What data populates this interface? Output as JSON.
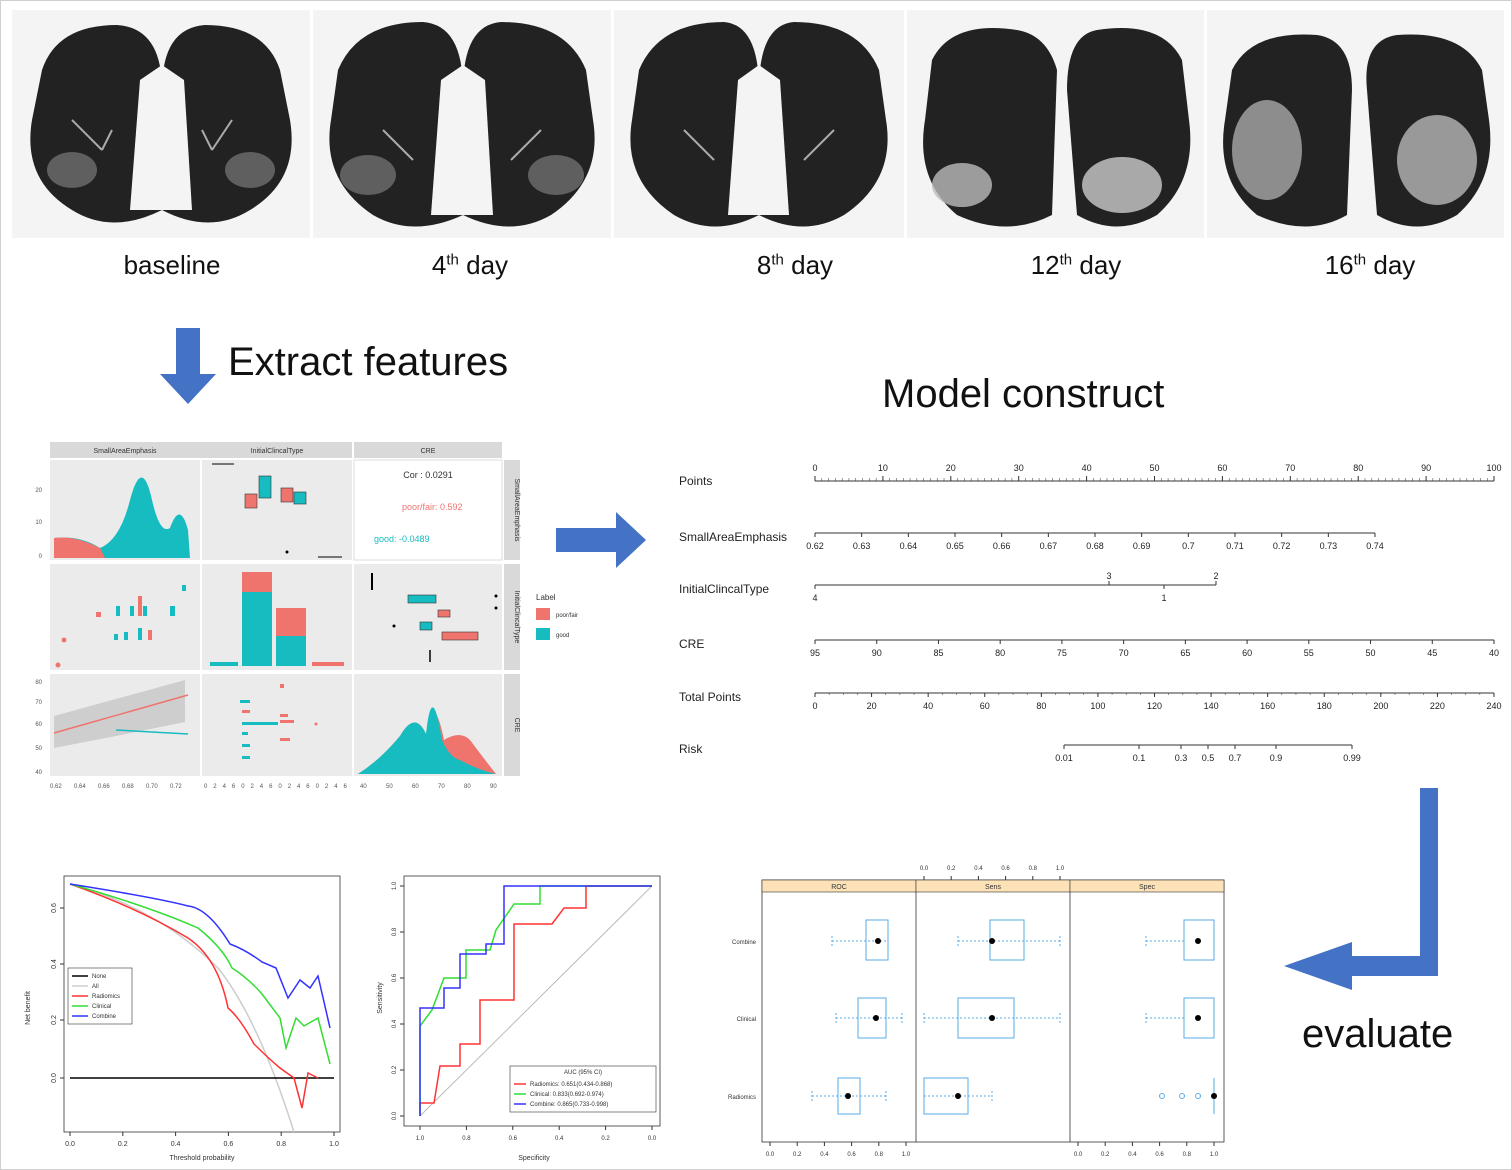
{
  "ct_labels": {
    "baseline": "baseline",
    "day4_num": "4",
    "day4_sup": "th",
    "day4_unit": " day",
    "day8_num": "8",
    "day8_sup": "th",
    "day8_unit": " day",
    "day12_num": "12",
    "day12_sup": "th",
    "day12_unit": " day",
    "day16_num": "16",
    "day16_sup": "th",
    "day16_unit": " day"
  },
  "steps": {
    "extract": "Extract features",
    "model": "Model construct",
    "evaluate": "evaluate"
  },
  "pairs_plot": {
    "headers": [
      "SmallAreaEmphasis",
      "InitialClincalType",
      "CRE"
    ],
    "row_strips": [
      "SmallAreaEmphasis",
      "InitialClincalType",
      "CRE"
    ],
    "cor_all": "Cor : 0.0291",
    "cor_poor": "poor/fair: 0.592",
    "cor_good": "good: -0.0489",
    "legend_title": "Label",
    "legend_items": [
      "poor/fair",
      "good"
    ],
    "colors": {
      "poor": "#f0746e",
      "good": "#17bcc0"
    },
    "x_ticks_col1": [
      "0.62",
      "0.64",
      "0.66",
      "0.68",
      "0.70",
      "0.72"
    ],
    "x_ticks_col2": [
      "0",
      "2",
      "4",
      "6",
      "0",
      "2",
      "4",
      "6",
      "0",
      "2",
      "4",
      "6",
      "0",
      "2",
      "4",
      "6"
    ],
    "x_ticks_col3": [
      "40",
      "50",
      "60",
      "70",
      "80",
      "90"
    ],
    "y_ticks_row1": [
      "20",
      "10",
      "0"
    ],
    "y_ticks_row3": [
      "80",
      "70",
      "60",
      "50",
      "40"
    ]
  },
  "nomogram": {
    "rows": [
      {
        "label": "Points",
        "ticks": [
          "0",
          "10",
          "20",
          "30",
          "40",
          "50",
          "60",
          "70",
          "80",
          "90",
          "100"
        ]
      },
      {
        "label": "SmallAreaEmphasis",
        "ticks": [
          "0.62",
          "0.63",
          "0.64",
          "0.65",
          "0.66",
          "0.67",
          "0.68",
          "0.69",
          "0.7",
          "0.71",
          "0.72",
          "0.73",
          "0.74"
        ]
      },
      {
        "label": "InitialClincalType",
        "ticks_top": [
          "3",
          "2"
        ],
        "ticks_bottom": [
          "4",
          "1"
        ]
      },
      {
        "label": "CRE",
        "ticks": [
          "95",
          "90",
          "85",
          "80",
          "75",
          "70",
          "65",
          "60",
          "55",
          "50",
          "45",
          "40"
        ]
      },
      {
        "label": "Total Points",
        "ticks": [
          "0",
          "20",
          "40",
          "60",
          "80",
          "100",
          "120",
          "140",
          "160",
          "180",
          "200",
          "220",
          "240"
        ]
      },
      {
        "label": "Risk",
        "ticks": [
          "0.01",
          "0.1",
          "0.3",
          "0.5",
          "0.7",
          "0.9",
          "0.99"
        ]
      }
    ]
  },
  "dca": {
    "ylabel": "Net benefit",
    "xlabel": "Threshold probability",
    "x_ticks": [
      "0.0",
      "0.2",
      "0.4",
      "0.6",
      "0.8",
      "1.0"
    ],
    "y_ticks": [
      "0.0",
      "0.2",
      "0.4",
      "0.6"
    ],
    "legend": [
      {
        "name": "None",
        "color": "#000000"
      },
      {
        "name": "All",
        "color": "#cccccc"
      },
      {
        "name": "Radiomics",
        "color": "#ff3333"
      },
      {
        "name": "Clinical",
        "color": "#33dd33"
      },
      {
        "name": "Combine",
        "color": "#3333ff"
      }
    ]
  },
  "roc": {
    "ylabel": "Sensitivity",
    "xlabel": "Specificity",
    "x_ticks": [
      "1.0",
      "0.8",
      "0.6",
      "0.4",
      "0.2",
      "0.0"
    ],
    "y_ticks": [
      "0.0",
      "0.2",
      "0.4",
      "0.6",
      "0.8",
      "1.0"
    ],
    "legend_title": "AUC (95% CI)",
    "legend": [
      {
        "name": "Radiomics: 0.651(0.434-0.868)",
        "color": "#ff3333"
      },
      {
        "name": "Clinical: 0.833(0.692-0.974)",
        "color": "#33dd33"
      },
      {
        "name": "Combine: 0.865(0.733-0.998)",
        "color": "#3333ff"
      }
    ]
  },
  "boxplot": {
    "panels": [
      "ROC",
      "Sens",
      "Spec"
    ],
    "models": [
      "Combine",
      "Clinical",
      "Radiomics"
    ],
    "top_ticks": [
      "0.0",
      "0.2",
      "0.4",
      "0.6",
      "0.8",
      "1.0"
    ],
    "bottom_ticks": [
      "0.0",
      "0.2",
      "0.4",
      "0.6",
      "0.8",
      "1.0"
    ],
    "strip_color": "#fde2b8",
    "box_color": "#5aabe8"
  }
}
